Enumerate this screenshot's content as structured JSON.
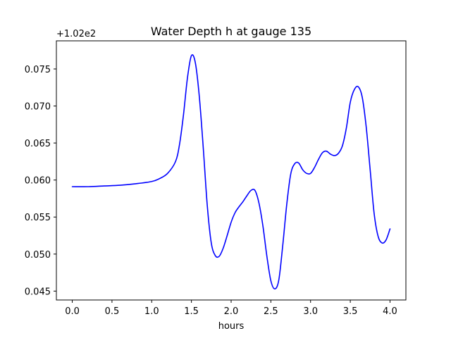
{
  "chart_data": {
    "type": "line",
    "title": "Water Depth h at gauge 135",
    "xlabel": "hours",
    "ylabel": "",
    "offset_label": "+1.02e2",
    "xlim": [
      -0.2,
      4.2
    ],
    "ylim": [
      0.0438,
      0.0788
    ],
    "xticks": [
      0.0,
      0.5,
      1.0,
      1.5,
      2.0,
      2.5,
      3.0,
      3.5,
      4.0
    ],
    "xtick_labels": [
      "0.0",
      "0.5",
      "1.0",
      "1.5",
      "2.0",
      "2.5",
      "3.0",
      "3.5",
      "4.0"
    ],
    "yticks": [
      0.045,
      0.05,
      0.055,
      0.06,
      0.065,
      0.07,
      0.075
    ],
    "ytick_labels": [
      "0.045",
      "0.050",
      "0.055",
      "0.060",
      "0.065",
      "0.070",
      "0.075"
    ],
    "grid": false,
    "series": [
      {
        "name": "",
        "color": "#0000ff",
        "x": [
          0.0,
          0.2,
          0.4,
          0.6,
          0.8,
          1.0,
          1.1,
          1.2,
          1.3,
          1.35,
          1.4,
          1.45,
          1.5,
          1.55,
          1.6,
          1.65,
          1.7,
          1.75,
          1.8,
          1.85,
          1.9,
          1.95,
          2.0,
          2.05,
          2.1,
          2.15,
          2.2,
          2.25,
          2.3,
          2.35,
          2.4,
          2.45,
          2.5,
          2.55,
          2.6,
          2.65,
          2.7,
          2.75,
          2.8,
          2.85,
          2.9,
          2.95,
          3.0,
          3.05,
          3.1,
          3.15,
          3.2,
          3.25,
          3.3,
          3.35,
          3.4,
          3.45,
          3.5,
          3.55,
          3.6,
          3.65,
          3.7,
          3.75,
          3.8,
          3.85,
          3.9,
          3.95,
          4.0
        ],
        "y": [
          0.0591,
          0.0591,
          0.0592,
          0.0593,
          0.0595,
          0.0598,
          0.0602,
          0.0609,
          0.0625,
          0.0648,
          0.0688,
          0.0738,
          0.0768,
          0.0758,
          0.0712,
          0.0642,
          0.0565,
          0.0515,
          0.0498,
          0.0497,
          0.0508,
          0.0525,
          0.0543,
          0.0556,
          0.0564,
          0.0571,
          0.0579,
          0.0586,
          0.0586,
          0.0569,
          0.0538,
          0.0497,
          0.0464,
          0.0453,
          0.0465,
          0.0512,
          0.0567,
          0.0608,
          0.0622,
          0.0623,
          0.0614,
          0.0609,
          0.0609,
          0.0617,
          0.0628,
          0.0637,
          0.0639,
          0.0635,
          0.0633,
          0.0636,
          0.0646,
          0.067,
          0.0705,
          0.0722,
          0.0726,
          0.0712,
          0.0672,
          0.0614,
          0.0555,
          0.0524,
          0.0515,
          0.0519,
          0.0534
        ]
      }
    ]
  }
}
